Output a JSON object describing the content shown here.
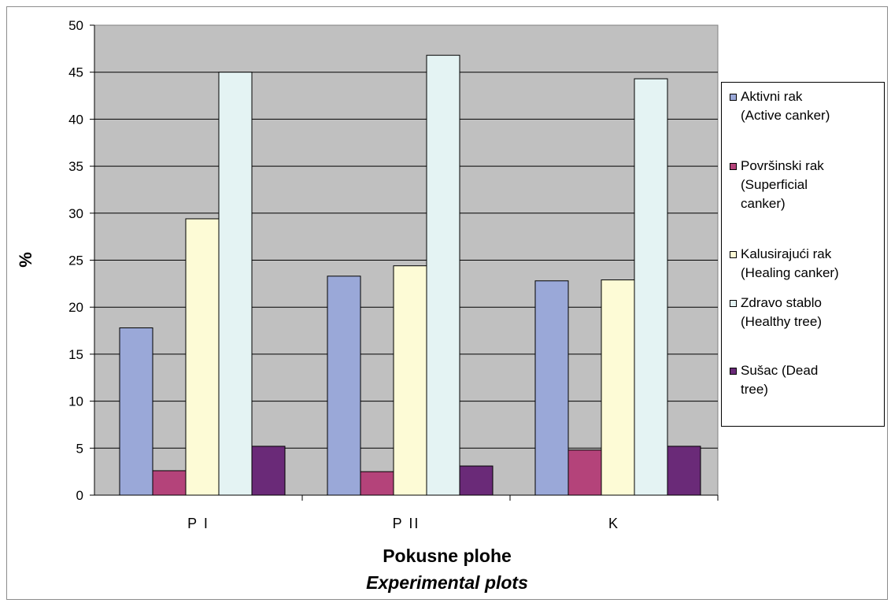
{
  "chart_data": {
    "type": "bar",
    "ylabel": "%",
    "xlabel": "Pokusne plohe",
    "xlabel_italic": "Experimental plots",
    "categories": [
      "P I",
      "P II",
      "K"
    ],
    "ylim": [
      0,
      50
    ],
    "yticks": [
      "0",
      "5",
      "10",
      "15",
      "20",
      "25",
      "30",
      "35",
      "40",
      "45",
      "50"
    ],
    "grid": true,
    "legend_position": "right",
    "series": [
      {
        "name": "Aktivni rak (Active canker)",
        "name_lines": [
          "Aktivni rak",
          "(Active canker)"
        ],
        "color": "#9aa8d8",
        "values": [
          17.8,
          23.3,
          22.8
        ]
      },
      {
        "name": "Površinski rak (Superficial canker)",
        "name_lines": [
          "Površinski rak",
          "(Superficial",
          "canker)"
        ],
        "color": "#b4437a",
        "values": [
          2.6,
          2.5,
          4.8
        ]
      },
      {
        "name": "Kalusirajući rak (Healing canker)",
        "name_lines": [
          "Kalusirajući rak",
          "(Healing canker)"
        ],
        "color": "#fdfbd6",
        "values": [
          29.4,
          24.4,
          22.9
        ]
      },
      {
        "name": "Zdravo stablo (Healthy tree)",
        "name_lines": [
          "Zdravo stablo",
          "(Healthy  tree)"
        ],
        "color": "#e4f3f3",
        "values": [
          45.0,
          46.8,
          44.3
        ]
      },
      {
        "name": "Sušac (Dead tree)",
        "name_lines": [
          "Sušac (Dead",
          "tree)"
        ],
        "color": "#6a2a78",
        "values": [
          5.2,
          3.1,
          5.2
        ]
      }
    ],
    "plot_background": "#c0c0c0"
  }
}
